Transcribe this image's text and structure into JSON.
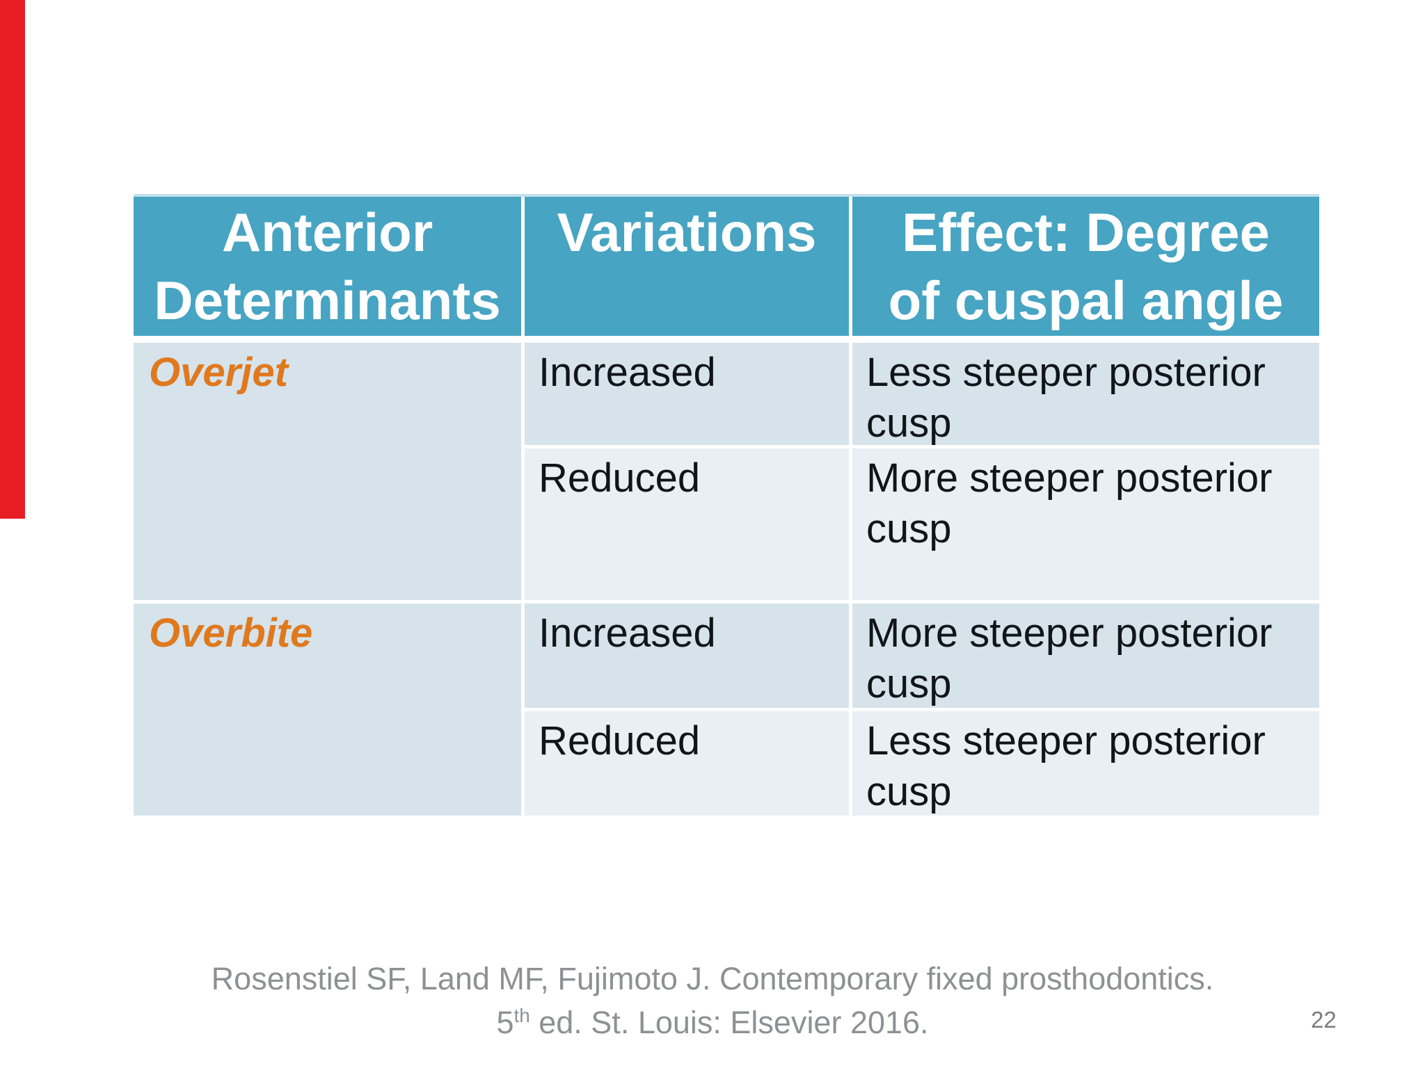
{
  "slide": {
    "page_number": "22",
    "citation": {
      "line1": "Rosenstiel SF, Land MF, Fujimoto J. Contemporary fixed prosthodontics.",
      "line2_base": "5",
      "line2_sup": "th",
      "line2_rest": " ed. St. Louis: Elsevier 2016."
    }
  },
  "colors": {
    "header_bg": "#47a4c2",
    "row_band_dark": "#d6e3ea",
    "row_band_light": "#e9eff5",
    "accent_bar_red": "#e71f25",
    "determinant_orange": "#e0791e",
    "citation_gray": "#8f9094"
  },
  "table": {
    "headers": [
      {
        "lines": [
          "Anterior",
          "Determinants"
        ]
      },
      {
        "lines": [
          "Variations",
          ""
        ]
      },
      {
        "lines": [
          "Effect: Degree",
          "of cuspal angle"
        ]
      }
    ],
    "groups": [
      {
        "determinant": "Overjet",
        "rows": [
          {
            "variation": "Increased",
            "effect": "Less steeper posterior cusp"
          },
          {
            "variation": "Reduced",
            "effect": "More steeper posterior cusp"
          }
        ]
      },
      {
        "determinant": "Overbite",
        "rows": [
          {
            "variation": "Increased",
            "effect": "More steeper posterior cusp"
          },
          {
            "variation": "Reduced",
            "effect": "Less steeper posterior cusp"
          }
        ]
      }
    ]
  }
}
